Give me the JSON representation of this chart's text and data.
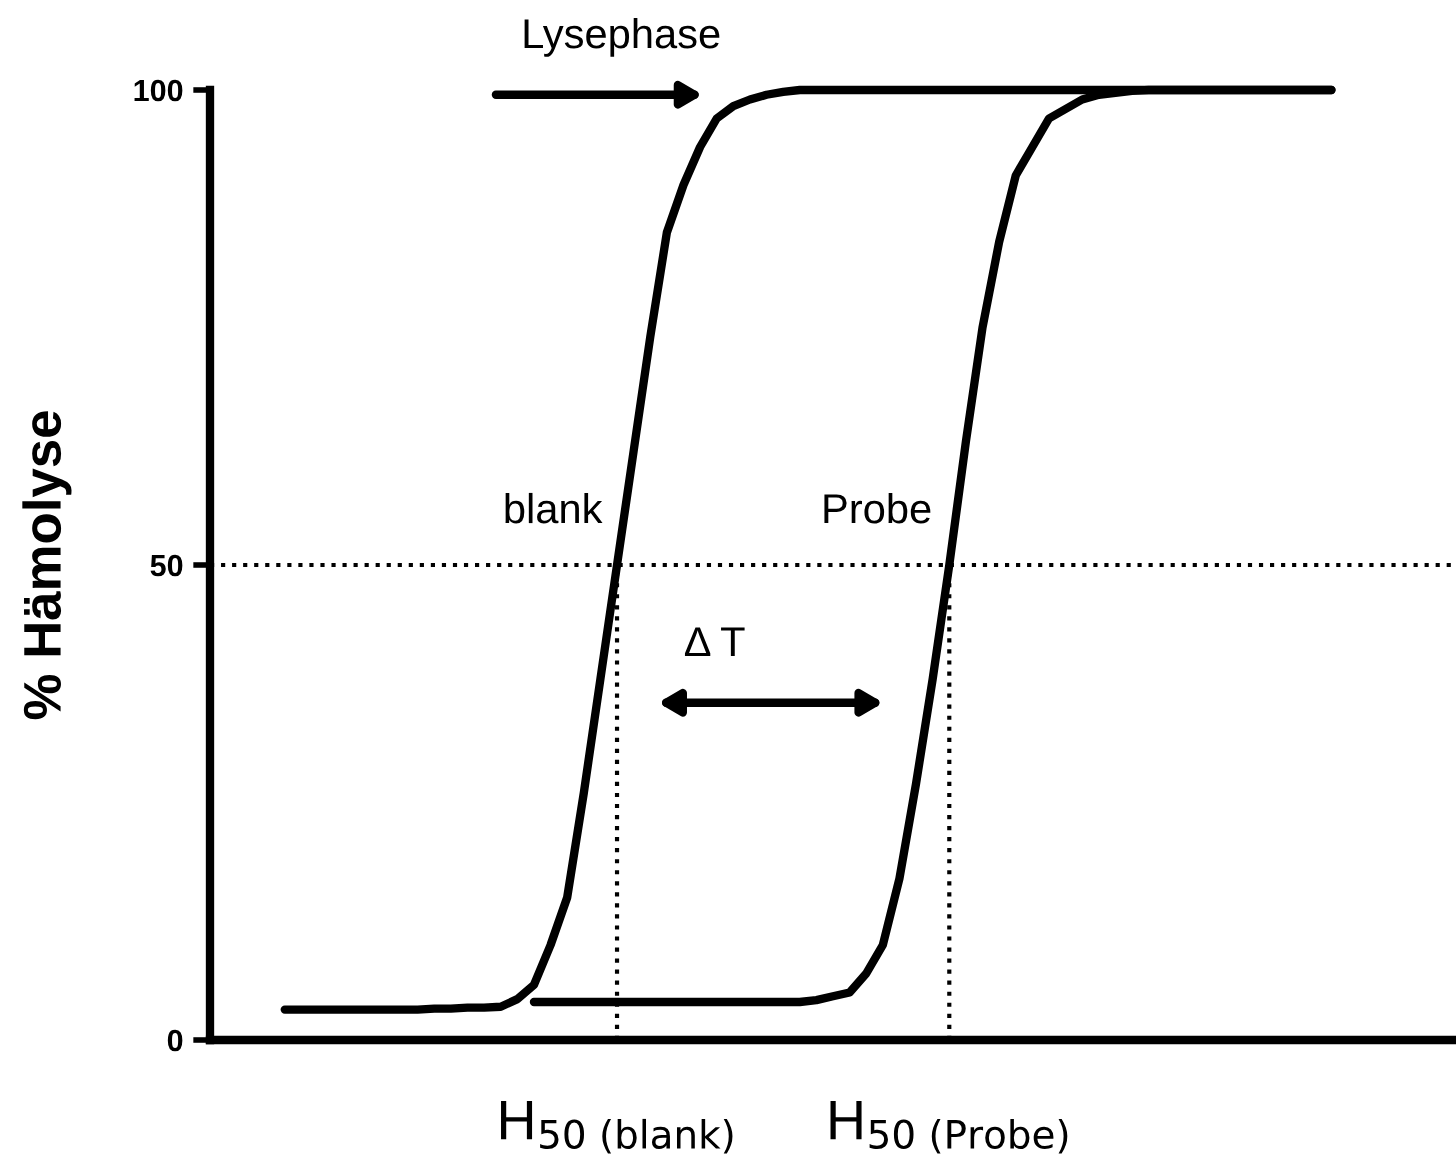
{
  "chart_data": {
    "type": "line",
    "ylabel": "% Hämolyse",
    "ylim": [
      0,
      100
    ],
    "yticks": [
      0,
      50,
      100
    ],
    "categories": [
      null,
      null,
      null,
      null,
      null,
      null,
      null,
      null,
      null,
      null,
      null,
      null,
      null,
      null,
      null,
      null,
      null,
      null,
      null,
      null,
      null,
      null,
      null,
      null,
      "H$_{50 (blank)}$",
      null,
      null,
      null,
      null,
      null,
      null,
      null,
      null,
      null,
      null,
      null,
      null,
      null,
      null,
      null,
      null,
      null,
      null,
      null,
      "H$_{50 (Probe)}$",
      null,
      null,
      null,
      null,
      null,
      null,
      null,
      null,
      null,
      null,
      null,
      null,
      null,
      null,
      null,
      null,
      null,
      null,
      null,
      null,
      null,
      null,
      null,
      null,
      null,
      null,
      null,
      null,
      null,
      null
    ],
    "grid": false,
    "legend": false,
    "marker": "none",
    "line_style": "solid",
    "series": [
      {
        "color": "#000000",
        "values": [
          null,
          null,
          null,
          null,
          3.2,
          3.2,
          3.2,
          3.2,
          3.2,
          3.2,
          3.2,
          3.2,
          3.2,
          3.3,
          3.3,
          3.4,
          3.4,
          3.5,
          4.3,
          5.8,
          10,
          15,
          26,
          38,
          50,
          62,
          74,
          85,
          90,
          94,
          97,
          98.3,
          99,
          99.5,
          99.8,
          100,
          100,
          100,
          100,
          100,
          100,
          100,
          100,
          100,
          100,
          100,
          100,
          100,
          100,
          100,
          100,
          100,
          100,
          100,
          100,
          100,
          100,
          100,
          100,
          100,
          100,
          100,
          100,
          100,
          100,
          100,
          100,
          100,
          null,
          null,
          null,
          null,
          null,
          null,
          null
        ]
      },
      {
        "color": "#000000",
        "values": [
          null,
          null,
          null,
          null,
          null,
          null,
          null,
          null,
          null,
          null,
          null,
          null,
          null,
          null,
          null,
          null,
          null,
          null,
          null,
          4,
          4,
          4,
          4,
          4,
          4,
          4,
          4,
          4,
          4,
          4,
          4,
          4,
          4,
          4,
          4,
          4,
          4.2,
          4.6,
          5,
          7,
          10,
          17,
          27,
          38,
          50,
          63,
          75,
          84,
          91,
          94,
          97,
          98,
          99,
          99.5,
          99.7,
          99.9,
          100,
          100,
          100,
          100,
          100,
          100,
          100,
          100,
          100,
          100,
          100,
          100,
          null,
          null,
          null,
          null,
          null,
          null,
          null
        ]
      }
    ],
    "ref_lines": [
      {
        "axis": "y",
        "value": 50,
        "line_style": "dotted",
        "color": "#000000"
      },
      {
        "axis": "x",
        "value": "H$_{50 (blank)}$",
        "line_style": "dotted",
        "color": "#000000"
      },
      {
        "axis": "x",
        "value": "H$_{50 (Probe)}$",
        "line_style": "dotted",
        "color": "#000000"
      }
    ],
    "annotations": [
      "Lysephase",
      "blank",
      "Probe",
      "Δ T"
    ]
  }
}
